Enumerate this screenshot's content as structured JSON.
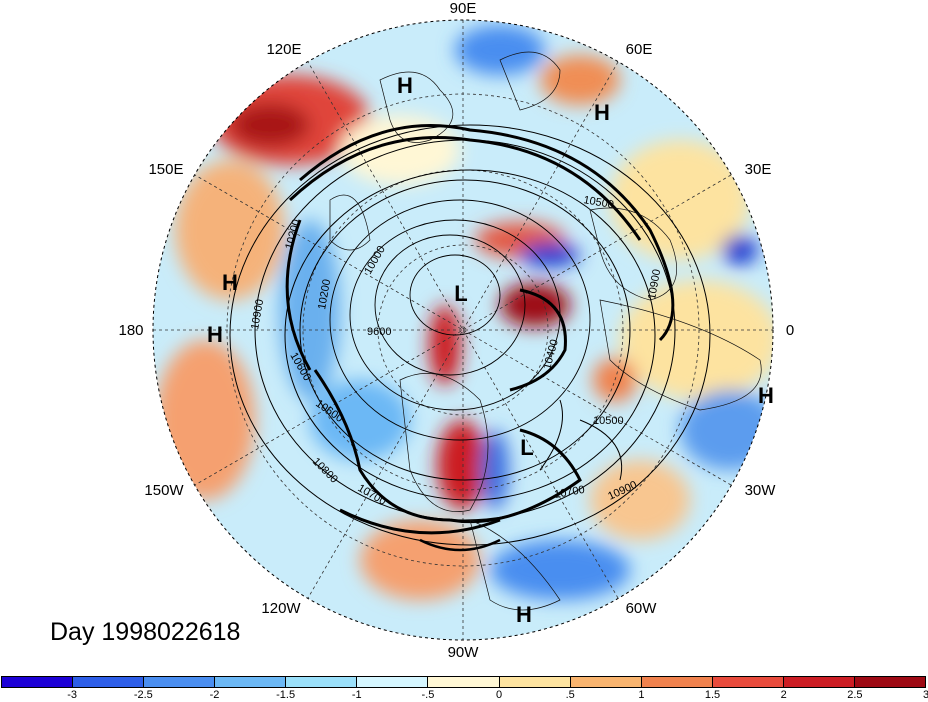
{
  "date_label": "Day 1998022618",
  "longitude_labels": [
    "90E",
    "60E",
    "30E",
    "0",
    "30W",
    "60W",
    "90W",
    "120W",
    "150W",
    "180",
    "150E",
    "120E"
  ],
  "pressure_centers": [
    "H",
    "H",
    "H",
    "H",
    "L",
    "L",
    "H",
    "H"
  ],
  "contour_labels": [
    "10900",
    "10200",
    "10000",
    "10600",
    "10800",
    "10700",
    "9600",
    "10500",
    "10400",
    "10600",
    "10500",
    "10900",
    "10700",
    "10200",
    "10900"
  ],
  "colorbar": {
    "colors": [
      "#1c00d6",
      "#2d5ee8",
      "#4a8ef0",
      "#6cb8f5",
      "#9be0fa",
      "#d5f6ff",
      "#fff7d5",
      "#fde3a0",
      "#f8b46f",
      "#f0824e",
      "#e84b3c",
      "#cc1d24",
      "#9e0a14"
    ],
    "tick_labels": [
      "-3",
      "-2.5",
      "-2",
      "-1.5",
      "-1",
      "-.5",
      "0",
      ".5",
      "1",
      "1.5",
      "2",
      "2.5",
      "3"
    ]
  }
}
